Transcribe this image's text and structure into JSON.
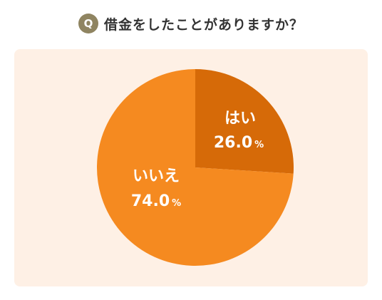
{
  "question": {
    "badge": "Q",
    "text": "借金をしたことがありますか？"
  },
  "colors": {
    "badge_bg": "#8f8461",
    "panel_bg": "#fef0e5",
    "slice_yes": "#d66a08",
    "slice_no": "#f58a20"
  },
  "chart_data": {
    "type": "pie",
    "title": "借金をしたことがありますか？",
    "unit": "%",
    "slices": [
      {
        "label": "はい",
        "value": 26.0,
        "display": "26.0"
      },
      {
        "label": "いいえ",
        "value": 74.0,
        "display": "74.0"
      }
    ]
  }
}
